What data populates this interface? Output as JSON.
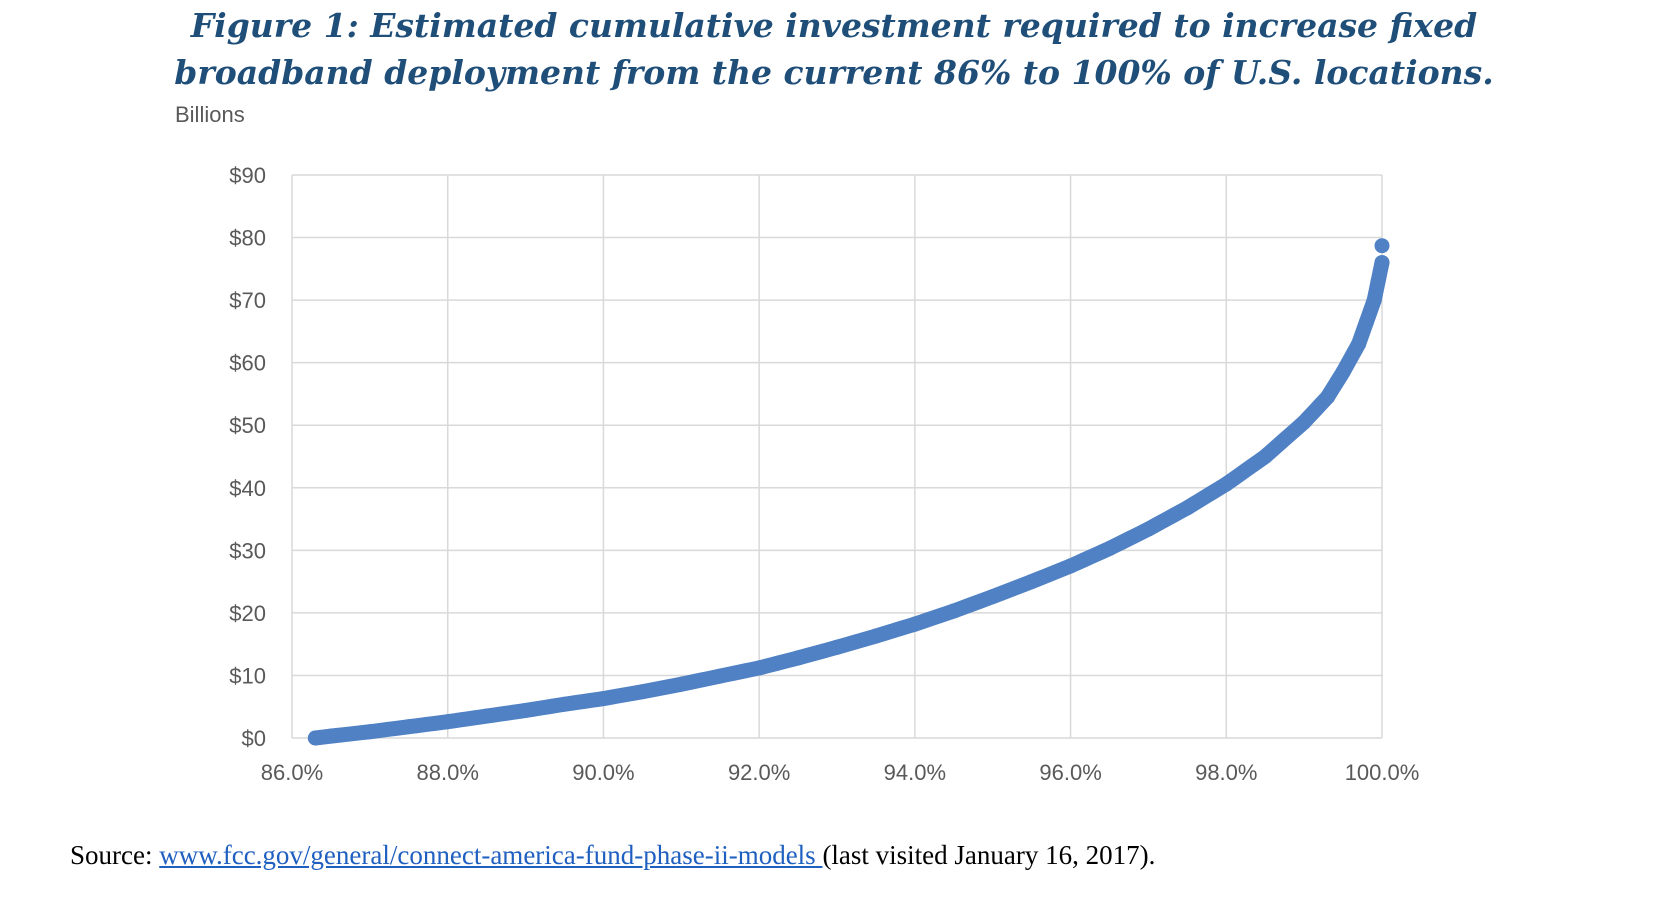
{
  "title": {
    "line1": "Figure 1: Estimated cumulative investment required to increase fixed",
    "line2": "broadband deployment from the current 86% to 100% of U.S. locations."
  },
  "source": {
    "prefix": "Source: ",
    "link": "www.fcc.gov/general/connect-america-fund-phase-ii-models ",
    "suffix": "(last visited January 16, 2017)."
  },
  "colors": {
    "title": "#1f4e79",
    "series": "#4f81c4",
    "grid": "#d9d9d9",
    "tick_text": "#595959",
    "link": "#1f5fbf"
  },
  "chart_data": {
    "type": "scatter",
    "title": "Figure 1: Estimated cumulative investment required to increase fixed broadband deployment from the current 86% to 100% of U.S. locations.",
    "xlabel": "",
    "ylabel": "Billions",
    "xlim": [
      86.0,
      100.0
    ],
    "ylim": [
      0,
      90
    ],
    "grid": true,
    "legend": "none",
    "x_ticks": [
      "86.0%",
      "88.0%",
      "90.0%",
      "92.0%",
      "94.0%",
      "96.0%",
      "98.0%",
      "100.0%"
    ],
    "x_tick_values": [
      86,
      88,
      90,
      92,
      94,
      96,
      98,
      100
    ],
    "y_ticks": [
      "$0",
      "$10",
      "$20",
      "$30",
      "$40",
      "$50",
      "$60",
      "$70",
      "$80",
      "$90"
    ],
    "y_tick_values": [
      0,
      10,
      20,
      30,
      40,
      50,
      60,
      70,
      80,
      90
    ],
    "series": [
      {
        "name": "Cumulative investment",
        "x": [
          86.3,
          86.5,
          87.0,
          87.5,
          88.0,
          88.5,
          89.0,
          89.5,
          90.0,
          90.5,
          91.0,
          91.5,
          92.0,
          92.5,
          93.0,
          93.5,
          94.0,
          94.5,
          95.0,
          95.5,
          96.0,
          96.5,
          97.0,
          97.5,
          98.0,
          98.5,
          99.0,
          99.3,
          99.5,
          99.7,
          99.8,
          99.9,
          99.95,
          100.0
        ],
        "values": [
          0.0,
          0.3,
          1.0,
          1.8,
          2.6,
          3.5,
          4.4,
          5.4,
          6.3,
          7.4,
          8.6,
          9.9,
          11.2,
          12.8,
          14.5,
          16.3,
          18.2,
          20.3,
          22.6,
          25.0,
          27.5,
          30.3,
          33.4,
          36.8,
          40.6,
          45.0,
          50.5,
          54.5,
          58.5,
          63.0,
          66.5,
          70.0,
          73.0,
          76.0
        ]
      },
      {
        "name": "Final point",
        "x": [
          100.0
        ],
        "values": [
          78.7
        ]
      }
    ]
  }
}
